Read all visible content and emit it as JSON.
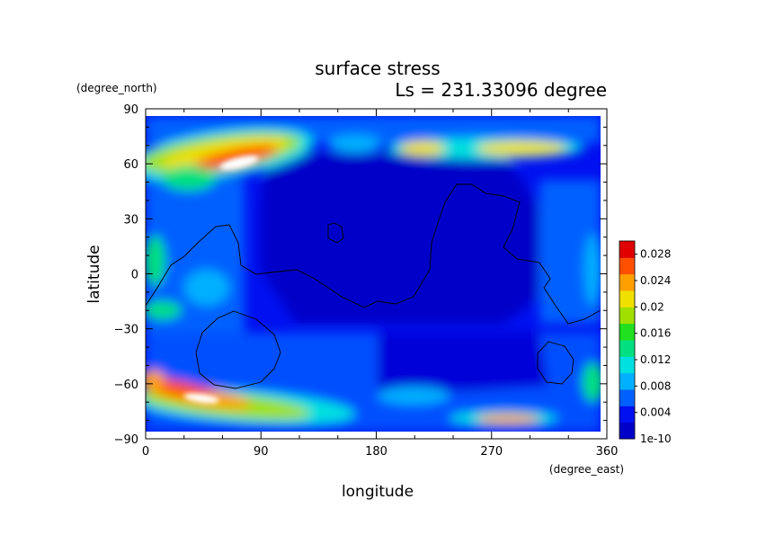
{
  "title": "surface stress",
  "subtitle": "Ls = 231.33096 degree",
  "chart_data": {
    "type": "heatmap",
    "title": "surface stress",
    "subtitle": "Ls = 231.33096 degree",
    "xlabel": "longitude",
    "ylabel": "latitude",
    "x_unit": "(degree_east)",
    "y_unit": "(degree_north)",
    "xlim": [
      0,
      360
    ],
    "ylim": [
      -90,
      90
    ],
    "x_ticks": [
      "0",
      "90",
      "180",
      "270",
      "360"
    ],
    "y_ticks": [
      "90",
      "60",
      "30",
      "0",
      "−30",
      "−60",
      "−90"
    ],
    "colorbar": {
      "min_label": "1e-10",
      "ticks": [
        "0.004",
        "0.008",
        "0.012",
        "0.016",
        "0.02",
        "0.024",
        "0.028"
      ],
      "range": [
        0,
        0.03
      ],
      "colors": [
        "#0000c8",
        "#0010f0",
        "#0060ff",
        "#00b0ff",
        "#00e0e0",
        "#00e080",
        "#20e020",
        "#a0e000",
        "#f0e000",
        "#ffa000",
        "#ff5000",
        "#e00000"
      ]
    },
    "features": [
      {
        "region": "north high-latitude band",
        "lon_range": [
          0,
          120
        ],
        "lat_range": [
          45,
          75
        ],
        "approx_max": 0.028
      },
      {
        "region": "south high-latitude band",
        "lon_range": [
          0,
          120
        ],
        "lat_range": [
          -80,
          -60
        ],
        "approx_max": 0.028
      },
      {
        "region": "north band",
        "lon_range": [
          200,
          350
        ],
        "lat_range": [
          60,
          75
        ],
        "approx_max": 0.02
      },
      {
        "region": "south band",
        "lon_range": [
          250,
          310
        ],
        "lat_range": [
          -85,
          -75
        ],
        "approx_max": 0.024
      },
      {
        "region": "central low-stress region",
        "lon_range": [
          90,
          300
        ],
        "lat_range": [
          -60,
          50
        ],
        "approx_max": 0.004
      }
    ]
  }
}
